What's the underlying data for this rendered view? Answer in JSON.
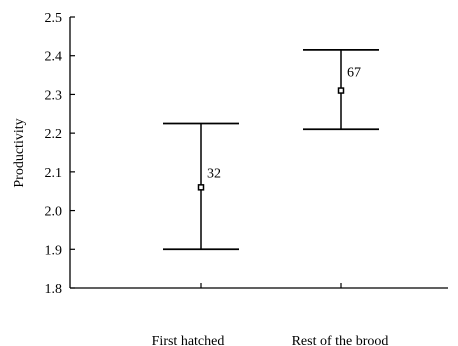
{
  "chart_data": {
    "type": "errorbar",
    "ylabel": "Productivity",
    "xlabel": "",
    "ylim": [
      1.8,
      2.5
    ],
    "yticks": [
      1.8,
      1.9,
      2.0,
      2.1,
      2.2,
      2.3,
      2.4,
      2.5
    ],
    "ytick_labels": [
      "1.8",
      "1.9",
      "2.0",
      "2.1",
      "2.2",
      "2.3",
      "2.4",
      "2.5"
    ],
    "grid": false,
    "categories": [
      "First hatched",
      "Rest of the brood"
    ],
    "series": [
      {
        "points": [
          {
            "category": "First hatched",
            "mean": 2.06,
            "lower": 1.9,
            "upper": 2.225,
            "n": "32"
          },
          {
            "category": "Rest of the brood",
            "mean": 2.31,
            "lower": 2.21,
            "upper": 2.415,
            "n": "67"
          }
        ]
      }
    ]
  }
}
